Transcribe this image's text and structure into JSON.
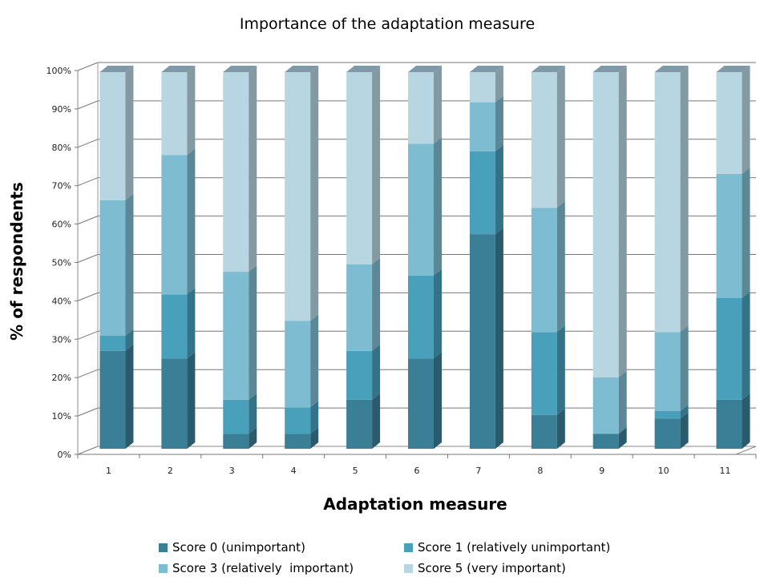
{
  "chart_data": {
    "type": "bar",
    "stacked": true,
    "title": "Importance of the adaptation measure",
    "xlabel": "Adaptation measure",
    "ylabel": "% of respondents",
    "ylim": [
      0,
      100
    ],
    "yticks": [
      "0%",
      "10%",
      "20%",
      "30%",
      "40%",
      "50%",
      "60%",
      "70%",
      "80%",
      "90%",
      "100%"
    ],
    "categories": [
      "1",
      "2",
      "3",
      "4",
      "5",
      "6",
      "7",
      "8",
      "9",
      "10",
      "11"
    ],
    "series": [
      {
        "name": "Score 0 (unimportant)",
        "color": "#3a7f96",
        "values": [
          26,
          24,
          4,
          4,
          13,
          24,
          57,
          9,
          4,
          8,
          13
        ]
      },
      {
        "name": "Score 1 (relatively unimportant)",
        "color": "#48a0bb",
        "values": [
          4,
          17,
          9,
          7,
          13,
          22,
          22,
          22,
          0,
          2,
          27
        ]
      },
      {
        "name": "Score 3 (relatively  important)",
        "color": "#7ebcd2",
        "values": [
          36,
          37,
          34,
          23,
          23,
          35,
          13,
          33,
          15,
          21,
          33
        ]
      },
      {
        "name": "Score 5 (very important)",
        "color": "#b7d6e2",
        "values": [
          34,
          22,
          53,
          66,
          51,
          19,
          8,
          36,
          81,
          69,
          27
        ]
      }
    ],
    "grid": true,
    "legend_position": "bottom"
  }
}
